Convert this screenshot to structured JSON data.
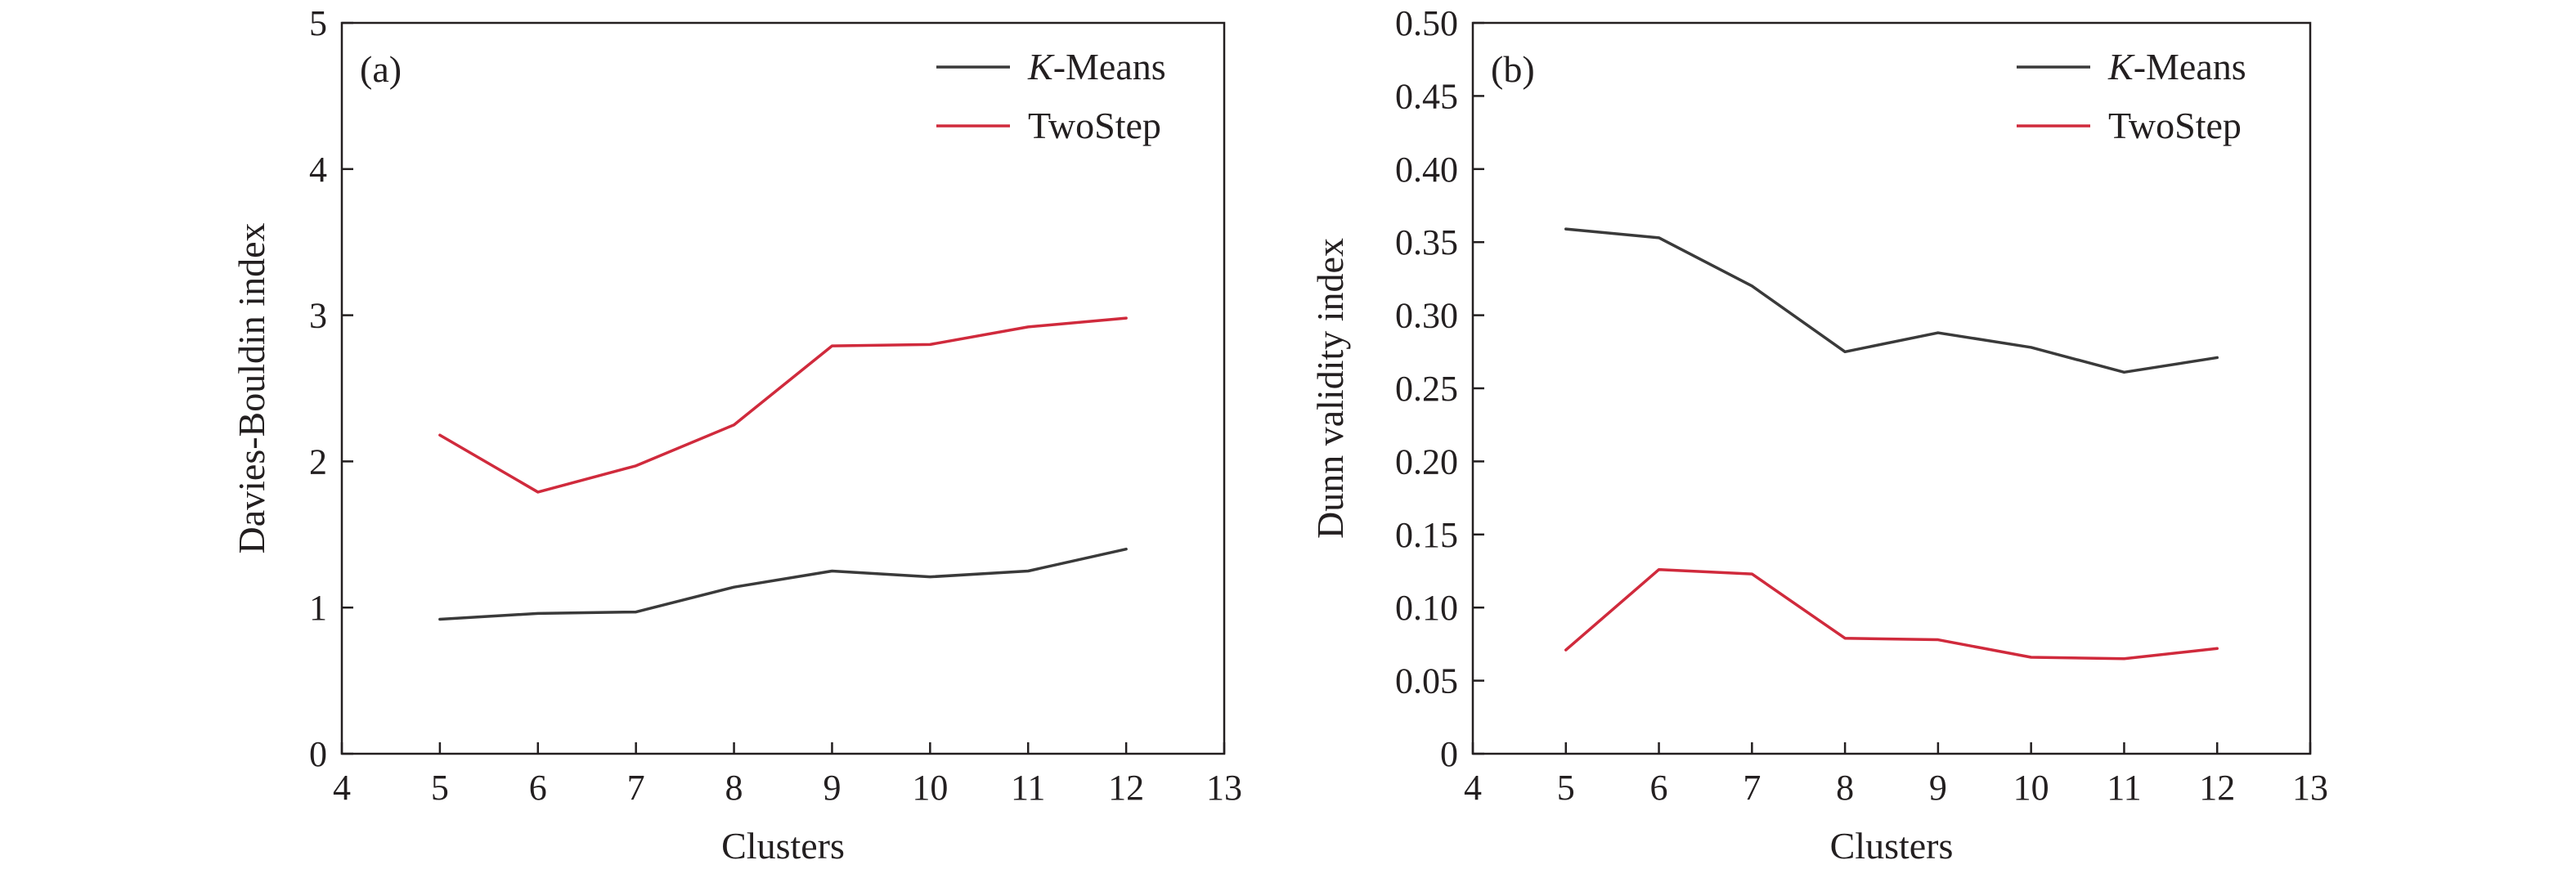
{
  "colors": {
    "kmeans": "#3a3a3a",
    "twostep": "#d02a3c",
    "axis": "#231f20"
  },
  "chart_data": [
    {
      "type": "line",
      "panel_label": "(a)",
      "xlabel": "Clusters",
      "ylabel": "Davies-Bouldin index",
      "xlim": [
        4,
        13
      ],
      "ylim": [
        0,
        5
      ],
      "xticks": [
        "4",
        "5",
        "6",
        "7",
        "8",
        "9",
        "10",
        "11",
        "12",
        "13"
      ],
      "yticks": [
        "0",
        "1",
        "2",
        "3",
        "4",
        "5"
      ],
      "legend_position": "top-right",
      "x": [
        5,
        6,
        7,
        8,
        9,
        10,
        11,
        12
      ],
      "series": [
        {
          "name_italic": "K",
          "name_rest": "-Means",
          "name": "K-Means",
          "color": "#3a3a3a",
          "values": [
            0.92,
            0.96,
            0.97,
            1.14,
            1.25,
            1.21,
            1.25,
            1.4
          ]
        },
        {
          "name_italic": "",
          "name_rest": "TwoStep",
          "name": "TwoStep",
          "color": "#d02a3c",
          "values": [
            2.18,
            1.79,
            1.97,
            2.25,
            2.79,
            2.8,
            2.92,
            2.98
          ]
        }
      ]
    },
    {
      "type": "line",
      "panel_label": "(b)",
      "xlabel": "Clusters",
      "ylabel": "Dunn validity index",
      "xlim": [
        4,
        13
      ],
      "ylim": [
        0,
        0.5
      ],
      "xticks": [
        "4",
        "5",
        "6",
        "7",
        "8",
        "9",
        "10",
        "11",
        "12",
        "13"
      ],
      "yticks": [
        "0",
        "0.05",
        "0.10",
        "0.15",
        "0.20",
        "0.25",
        "0.30",
        "0.35",
        "0.40",
        "0.45",
        "0.50"
      ],
      "legend_position": "top-right",
      "x": [
        5,
        6,
        7,
        8,
        9,
        10,
        11,
        12
      ],
      "series": [
        {
          "name_italic": "K",
          "name_rest": "-Means",
          "name": "K-Means",
          "color": "#3a3a3a",
          "values": [
            0.359,
            0.353,
            0.32,
            0.275,
            0.288,
            0.278,
            0.261,
            0.271
          ]
        },
        {
          "name_italic": "",
          "name_rest": "TwoStep",
          "name": "TwoStep",
          "color": "#d02a3c",
          "values": [
            0.071,
            0.126,
            0.123,
            0.079,
            0.078,
            0.066,
            0.065,
            0.072
          ]
        }
      ]
    }
  ]
}
